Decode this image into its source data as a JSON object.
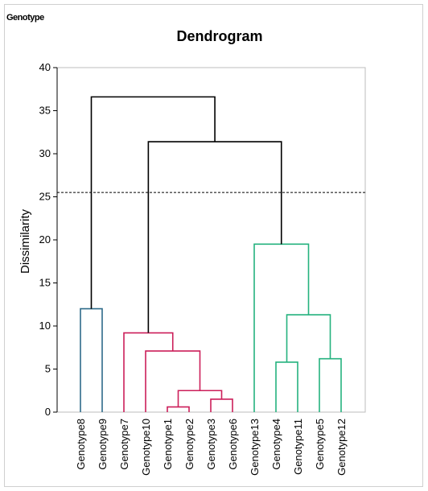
{
  "corner_label": "Genotype",
  "chart_data": {
    "type": "dendrogram",
    "title": "Dendrogram",
    "ylabel": "Dissimilarity",
    "xlabel": "",
    "ylim": [
      0,
      40
    ],
    "yticks": [
      0,
      5,
      10,
      15,
      20,
      25,
      30,
      35,
      40
    ],
    "grid": false,
    "truncation_line": 25.5,
    "leaves": [
      "Genotype8",
      "Genotype9",
      "Genotype7",
      "Genotype10",
      "Genotype1",
      "Genotype2",
      "Genotype3",
      "Genotype6",
      "Genotype13",
      "Genotype4",
      "Genotype11",
      "Genotype5",
      "Genotype12"
    ],
    "cluster_colors": {
      "blue": "#2e6b8a",
      "red": "#cc1f5a",
      "green": "#25b27f",
      "black": "#000000"
    },
    "merges": [
      {
        "left": "Genotype8",
        "right": "Genotype9",
        "height": 12.0,
        "color": "blue"
      },
      {
        "left": "Genotype1",
        "right": "Genotype2",
        "height": 0.6,
        "color": "red"
      },
      {
        "left": "Genotype3",
        "right": "Genotype6",
        "height": 1.5,
        "color": "red"
      },
      {
        "left": "Genotype1+Genotype2",
        "right": "Genotype3+Genotype6",
        "height": 2.5,
        "color": "red"
      },
      {
        "left": "Genotype10",
        "right": "Genotype1+Genotype2+Genotype3+Genotype6",
        "height": 7.1,
        "color": "red"
      },
      {
        "left": "Genotype7",
        "right": "Genotype10+Genotype1+Genotype2+Genotype3+Genotype6",
        "height": 9.2,
        "color": "red"
      },
      {
        "left": "Genotype4",
        "right": "Genotype11",
        "height": 5.8,
        "color": "green"
      },
      {
        "left": "Genotype5",
        "right": "Genotype12",
        "height": 6.2,
        "color": "green"
      },
      {
        "left": "Genotype4+Genotype11",
        "right": "Genotype5+Genotype12",
        "height": 11.3,
        "color": "green"
      },
      {
        "left": "Genotype13",
        "right": "Genotype4+Genotype11+Genotype5+Genotype12",
        "height": 19.5,
        "color": "green"
      },
      {
        "left": "red-cluster",
        "right": "green-cluster",
        "height": 31.4,
        "color": "black"
      },
      {
        "left": "blue-cluster",
        "right": "red-green-cluster",
        "height": 36.6,
        "color": "black"
      }
    ]
  }
}
